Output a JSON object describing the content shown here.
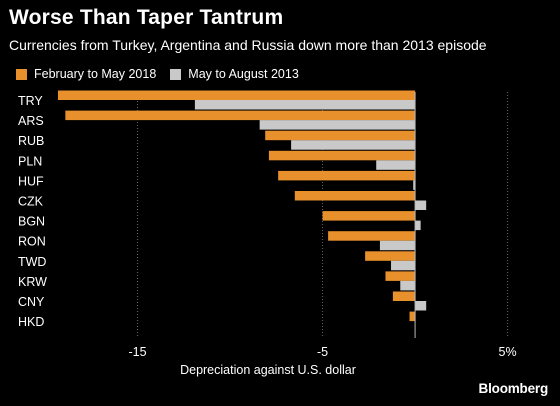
{
  "header": {
    "title": "Worse Than Taper Tantrum",
    "subtitle": "Currencies from Turkey, Argentina and Russia down more than 2013 episode"
  },
  "legend": {
    "items": [
      {
        "label": "February to May 2018",
        "color": "#e8902b"
      },
      {
        "label": "May to August 2013",
        "color": "#c9c9c9"
      }
    ]
  },
  "brand": "Bloomberg",
  "chart_data": {
    "type": "bar",
    "orientation": "horizontal",
    "categories": [
      "TRY",
      "ARS",
      "RUB",
      "PLN",
      "HUF",
      "CZK",
      "BGN",
      "RON",
      "TWD",
      "KRW",
      "CNY",
      "HKD"
    ],
    "series": [
      {
        "name": "February to May 2018",
        "color": "#e8902b",
        "values": [
          -19.3,
          -18.9,
          -8.1,
          -7.9,
          -7.4,
          -6.5,
          -5.0,
          -4.7,
          -2.7,
          -1.6,
          -1.2,
          -0.3
        ]
      },
      {
        "name": "May to August 2013",
        "color": "#c9c9c9",
        "values": [
          -11.9,
          -8.4,
          -6.7,
          -2.1,
          -0.1,
          0.6,
          0.3,
          -1.9,
          -1.3,
          -0.8,
          0.6,
          0.0
        ]
      }
    ],
    "xlabel": "Depreciation against U.S. dollar",
    "xlim": [
      -20,
      5.4
    ],
    "xticks": [
      -15,
      -5,
      5
    ],
    "xtick_labels": [
      "-15",
      "-5",
      "5%"
    ],
    "grid": "vertical dotted",
    "legend_position": "top-left"
  }
}
